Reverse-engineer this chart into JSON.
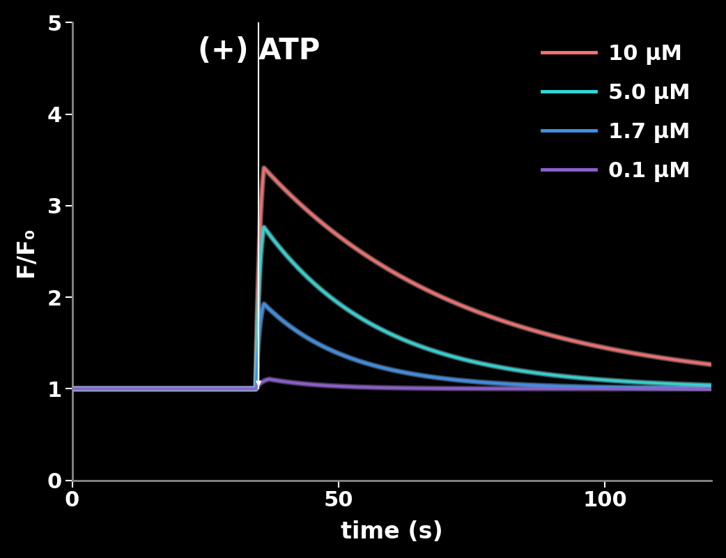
{
  "background_color": "#000000",
  "xlim": [
    0,
    120
  ],
  "ylim": [
    0,
    5
  ],
  "xticks": [
    0,
    50,
    100
  ],
  "yticks": [
    0,
    1,
    2,
    3,
    4,
    5
  ],
  "xlabel": "time (s)",
  "ylabel": "F/F₀",
  "atp_annotation": "(+) ATP",
  "atp_x": 35,
  "series": [
    {
      "label": "10 μM",
      "color_core": "#f87070",
      "color_glow": "#ffb0b0",
      "peak": 3.85,
      "peak_t": 36,
      "baseline": 1.0,
      "rise_tau": 0.8,
      "decay_tau": 38,
      "stim_t": 34.5
    },
    {
      "label": "5.0 μM",
      "color_core": "#30d8d8",
      "color_glow": "#90f0f0",
      "peak": 3.0,
      "peak_t": 36,
      "baseline": 1.0,
      "rise_tau": 0.7,
      "decay_tau": 22,
      "stim_t": 34.5
    },
    {
      "label": "1.7 μM",
      "color_core": "#4090e8",
      "color_glow": "#80c0ff",
      "peak": 2.05,
      "peak_t": 36,
      "baseline": 1.0,
      "rise_tau": 0.7,
      "decay_tau": 16,
      "stim_t": 34.5
    },
    {
      "label": "0.1 μM",
      "color_core": "#9060d0",
      "color_glow": "#b088e8",
      "peak": 1.12,
      "peak_t": 37,
      "baseline": 1.0,
      "rise_tau": 1.2,
      "decay_tau": 10,
      "stim_t": 34.5
    }
  ],
  "text_color": "#ffffff",
  "spine_color": "#888888",
  "tick_color": "#ffffff",
  "linewidth_core": 2.5,
  "linewidth_glow": 6.0,
  "legend_fontsize": 22,
  "axis_label_fontsize": 24,
  "tick_fontsize": 22,
  "annotation_fontsize": 30
}
